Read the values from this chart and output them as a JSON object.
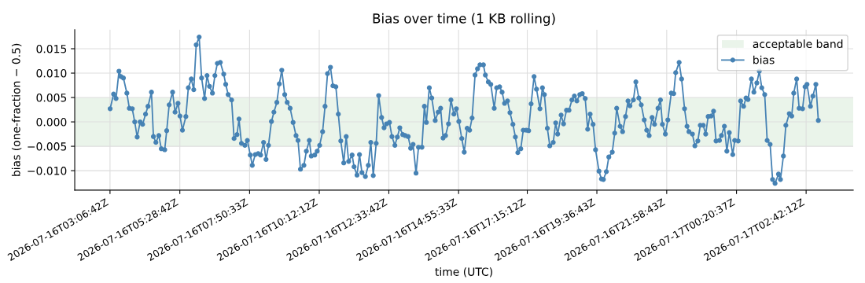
{
  "chart_data": {
    "type": "line",
    "title": "Bias over time (1 KB rolling)",
    "xlabel": "time (UTC)",
    "ylabel": "bias (one-fraction − 0.5)",
    "xlim": [
      "2026-07-16T01:55",
      "2026-07-17T04:18"
    ],
    "ylim": [
      -0.014,
      0.0189
    ],
    "xticks": [
      {
        "value": "2026-07-16T03:06:42",
        "label": "2026-07-16T03:06:42Z"
      },
      {
        "value": "2026-07-16T05:28:42",
        "label": "2026-07-16T05:28:42Z"
      },
      {
        "value": "2026-07-16T07:50:33",
        "label": "2026-07-16T07:50:33Z"
      },
      {
        "value": "2026-07-16T10:12:12",
        "label": "2026-07-16T10:12:12Z"
      },
      {
        "value": "2026-07-16T12:33:42",
        "label": "2026-07-16T12:33:42Z"
      },
      {
        "value": "2026-07-16T14:55:33",
        "label": "2026-07-16T14:55:33Z"
      },
      {
        "value": "2026-07-16T17:15:12",
        "label": "2026-07-16T17:15:12Z"
      },
      {
        "value": "2026-07-16T19:36:43",
        "label": "2026-07-16T19:36:43Z"
      },
      {
        "value": "2026-07-16T21:58:43",
        "label": "2026-07-16T21:58:43Z"
      },
      {
        "value": "2026-07-17T00:20:37",
        "label": "2026-07-17T00:20:37Z"
      },
      {
        "value": "2026-07-17T02:42:12",
        "label": "2026-07-17T02:42:12Z"
      }
    ],
    "yticks": [
      {
        "value": -0.01,
        "label": "−0.010"
      },
      {
        "value": -0.005,
        "label": "−0.005"
      },
      {
        "value": 0,
        "label": "0.000"
      },
      {
        "value": 0.005,
        "label": "0.005"
      },
      {
        "value": 0.01,
        "label": "0.010"
      },
      {
        "value": 0.015,
        "label": "0.015"
      }
    ],
    "grid": true,
    "legend": "top right",
    "marker": "circle",
    "line_style": "solid",
    "bands": [
      {
        "axis": "y",
        "from": -0.005,
        "to": 0.005,
        "label": "acceptable band",
        "color": "#eaf4ea"
      }
    ],
    "series": [
      {
        "name": "bias",
        "color": "#4682b4",
        "x": [
          "2026-07-16T03:07",
          "2026-07-16T03:14",
          "2026-07-16T03:19",
          "2026-07-16T03:25",
          "2026-07-16T03:29",
          "2026-07-16T03:34",
          "2026-07-16T03:41",
          "2026-07-16T03:46",
          "2026-07-16T03:52",
          "2026-07-16T03:57",
          "2026-07-16T04:02",
          "2026-07-16T04:08",
          "2026-07-16T04:13",
          "2026-07-16T04:19",
          "2026-07-16T04:24",
          "2026-07-16T04:31",
          "2026-07-16T04:35",
          "2026-07-16T04:40",
          "2026-07-16T04:46",
          "2026-07-16T04:51",
          "2026-07-16T04:58",
          "2026-07-16T05:02",
          "2026-07-16T05:07",
          "2026-07-16T05:14",
          "2026-07-16T05:19",
          "2026-07-16T05:25",
          "2026-07-16T05:29",
          "2026-07-16T05:34",
          "2026-07-16T05:41",
          "2026-07-16T05:46",
          "2026-07-16T05:52",
          "2026-07-16T05:57",
          "2026-07-16T06:02",
          "2026-07-16T06:08",
          "2026-07-16T06:13",
          "2026-07-16T06:19",
          "2026-07-16T06:24",
          "2026-07-16T06:29",
          "2026-07-16T06:35",
          "2026-07-16T06:40",
          "2026-07-16T06:45",
          "2026-07-16T06:51",
          "2026-07-16T06:58",
          "2026-07-16T07:02",
          "2026-07-16T07:07",
          "2026-07-16T07:14",
          "2026-07-16T07:19",
          "2026-07-16T07:25",
          "2026-07-16T07:29",
          "2026-07-16T07:34",
          "2026-07-16T07:41",
          "2026-07-16T07:46",
          "2026-07-16T07:52",
          "2026-07-16T07:56",
          "2026-07-16T08:02",
          "2026-07-16T08:08",
          "2026-07-16T08:13",
          "2026-07-16T08:19",
          "2026-07-16T08:24",
          "2026-07-16T08:29",
          "2026-07-16T08:35",
          "2026-07-16T08:40",
          "2026-07-16T08:46",
          "2026-07-16T08:51",
          "2026-07-16T08:56",
          "2026-07-16T09:02",
          "2026-07-16T09:07",
          "2026-07-16T09:13",
          "2026-07-16T09:19",
          "2026-07-16T09:25",
          "2026-07-16T09:29",
          "2026-07-16T09:34",
          "2026-07-16T09:41",
          "2026-07-16T09:46",
          "2026-07-16T09:52",
          "2026-07-16T09:56",
          "2026-07-16T10:03",
          "2026-07-16T10:08",
          "2026-07-16T10:13",
          "2026-07-16T10:19",
          "2026-07-16T10:24",
          "2026-07-16T10:29",
          "2026-07-16T10:35",
          "2026-07-16T10:40",
          "2026-07-16T10:46",
          "2026-07-16T10:51",
          "2026-07-16T10:56",
          "2026-07-16T11:02",
          "2026-07-16T11:07",
          "2026-07-16T11:12",
          "2026-07-16T11:19",
          "2026-07-16T11:23",
          "2026-07-16T11:29",
          "2026-07-16T11:34",
          "2026-07-16T11:39",
          "2026-07-16T11:46",
          "2026-07-16T11:52",
          "2026-07-16T11:57",
          "2026-07-16T12:02",
          "2026-07-16T12:08",
          "2026-07-16T12:13",
          "2026-07-16T12:19",
          "2026-07-16T12:24",
          "2026-07-16T12:29",
          "2026-07-16T12:35",
          "2026-07-16T12:40",
          "2026-07-16T12:46",
          "2026-07-16T12:51",
          "2026-07-16T12:56",
          "2026-07-16T13:02",
          "2026-07-16T13:07",
          "2026-07-16T13:13",
          "2026-07-16T13:18",
          "2026-07-16T13:23",
          "2026-07-16T13:29",
          "2026-07-16T13:34",
          "2026-07-16T13:41",
          "2026-07-16T13:46",
          "2026-07-16T13:50",
          "2026-07-16T13:56",
          "2026-07-16T14:01",
          "2026-07-16T14:08",
          "2026-07-16T14:14",
          "2026-07-16T14:19",
          "2026-07-16T14:24",
          "2026-07-16T14:29",
          "2026-07-16T14:35",
          "2026-07-16T14:40",
          "2026-07-16T14:46",
          "2026-07-16T14:51",
          "2026-07-16T14:56",
          "2026-07-16T15:02",
          "2026-07-16T15:07",
          "2026-07-16T15:13",
          "2026-07-16T15:18",
          "2026-07-16T15:23",
          "2026-07-16T15:29",
          "2026-07-16T15:34",
          "2026-07-16T15:39",
          "2026-07-16T15:46",
          "2026-07-16T15:50",
          "2026-07-16T15:56",
          "2026-07-16T16:01",
          "2026-07-16T16:08",
          "2026-07-16T16:13",
          "2026-07-16T16:19",
          "2026-07-16T16:24",
          "2026-07-16T16:29",
          "2026-07-16T16:35",
          "2026-07-16T16:40",
          "2026-07-16T16:46",
          "2026-07-16T16:51",
          "2026-07-16T16:56",
          "2026-07-16T17:02",
          "2026-07-16T17:07",
          "2026-07-16T17:13",
          "2026-07-16T17:18",
          "2026-07-16T17:23",
          "2026-07-16T17:29",
          "2026-07-16T17:34",
          "2026-07-16T17:41",
          "2026-07-16T17:46",
          "2026-07-16T17:50",
          "2026-07-16T17:56",
          "2026-07-16T18:01",
          "2026-07-16T18:08",
          "2026-07-16T18:13",
          "2026-07-16T18:17",
          "2026-07-16T18:24",
          "2026-07-16T18:29",
          "2026-07-16T18:35",
          "2026-07-16T18:40",
          "2026-07-16T18:46",
          "2026-07-16T18:51",
          "2026-07-16T18:56",
          "2026-07-16T19:02",
          "2026-07-16T19:07",
          "2026-07-16T19:13",
          "2026-07-16T19:18",
          "2026-07-16T19:23",
          "2026-07-16T19:29",
          "2026-07-16T19:34",
          "2026-07-16T19:41",
          "2026-07-16T19:46",
          "2026-07-16T19:50",
          "2026-07-16T19:56",
          "2026-07-16T20:01",
          "2026-07-16T20:08",
          "2026-07-16T20:13",
          "2026-07-16T20:17",
          "2026-07-16T20:24",
          "2026-07-16T20:29",
          "2026-07-16T20:35",
          "2026-07-16T20:40",
          "2026-07-16T20:44",
          "2026-07-16T20:51",
          "2026-07-16T20:56",
          "2026-07-16T21:02",
          "2026-07-16T21:07",
          "2026-07-16T21:13",
          "2026-07-16T21:18",
          "2026-07-16T21:23",
          "2026-07-16T21:29",
          "2026-07-16T21:34",
          "2026-07-16T21:41",
          "2026-07-16T21:46",
          "2026-07-16T21:50",
          "2026-07-16T21:56",
          "2026-07-16T22:01",
          "2026-07-16T22:08",
          "2026-07-16T22:13",
          "2026-07-16T22:17",
          "2026-07-16T22:24",
          "2026-07-16T22:29",
          "2026-07-16T22:35",
          "2026-07-16T22:40",
          "2026-07-16T22:44",
          "2026-07-16T22:51",
          "2026-07-16T22:56",
          "2026-07-16T23:02",
          "2026-07-16T23:07",
          "2026-07-16T23:13",
          "2026-07-16T23:18",
          "2026-07-16T23:23",
          "2026-07-16T23:29",
          "2026-07-16T23:34",
          "2026-07-16T23:39",
          "2026-07-16T23:46",
          "2026-07-16T23:50",
          "2026-07-16T23:56",
          "2026-07-17T00:01",
          "2026-07-17T00:06",
          "2026-07-17T00:13",
          "2026-07-17T00:17",
          "2026-07-17T00:24",
          "2026-07-17T00:29",
          "2026-07-17T00:35",
          "2026-07-17T00:40",
          "2026-07-17T00:44",
          "2026-07-17T00:51",
          "2026-07-17T00:56",
          "2026-07-17T01:02",
          "2026-07-17T01:07",
          "2026-07-17T01:12",
          "2026-07-17T01:18",
          "2026-07-17T01:23",
          "2026-07-17T01:29",
          "2026-07-17T01:34",
          "2026-07-17T01:39",
          "2026-07-17T01:46",
          "2026-07-17T01:50",
          "2026-07-17T01:56",
          "2026-07-17T02:01",
          "2026-07-17T02:08",
          "2026-07-17T02:13",
          "2026-07-17T02:17",
          "2026-07-17T02:23",
          "2026-07-17T02:28",
          "2026-07-17T02:35",
          "2026-07-17T02:40",
          "2026-07-17T02:44",
          "2026-07-17T02:51",
          "2026-07-17T02:56",
          "2026-07-17T03:02",
          "2026-07-17T03:07"
        ],
        "values": [
          0.0027,
          0.0057,
          0.0048,
          0.0104,
          0.0093,
          0.009,
          0.0059,
          0.0028,
          0.0027,
          0.0,
          -0.0031,
          0.0,
          -0.0005,
          0.0016,
          0.0032,
          0.0061,
          -0.003,
          -0.0042,
          -0.0028,
          -0.0055,
          -0.0057,
          -0.0018,
          0.0035,
          0.0061,
          0.002,
          0.0038,
          0.0012,
          -0.0017,
          0.0011,
          0.007,
          0.0088,
          0.0066,
          0.0158,
          0.0174,
          0.009,
          0.0048,
          0.0095,
          0.0073,
          0.0059,
          0.0095,
          0.012,
          0.0122,
          0.0098,
          0.0077,
          0.0056,
          0.0045,
          -0.0034,
          -0.0026,
          0.0006,
          -0.0044,
          -0.0048,
          -0.0038,
          -0.0068,
          -0.0089,
          -0.0067,
          -0.0065,
          -0.0068,
          -0.0042,
          -0.0077,
          -0.0048,
          0.0001,
          0.002,
          0.004,
          0.0078,
          0.0106,
          0.0056,
          0.004,
          0.0028,
          -0.0001,
          -0.0028,
          -0.0038,
          -0.0097,
          -0.0089,
          -0.006,
          -0.0038,
          -0.007,
          -0.0068,
          -0.006,
          -0.0048,
          -0.002,
          0.0032,
          0.0099,
          0.0112,
          0.0074,
          0.0072,
          0.0016,
          -0.0039,
          -0.0084,
          -0.003,
          -0.0081,
          -0.0068,
          -0.0092,
          -0.0109,
          -0.0067,
          -0.0104,
          -0.0112,
          -0.0089,
          -0.0042,
          -0.011,
          -0.0044,
          0.0054,
          0.0009,
          -0.0012,
          -0.0004,
          -0.0001,
          -0.003,
          -0.0048,
          -0.0031,
          -0.0012,
          -0.0026,
          -0.0028,
          -0.003,
          -0.0054,
          -0.0046,
          -0.0105,
          -0.0052,
          -0.0052,
          0.0032,
          -0.0001,
          0.007,
          0.0049,
          0.0003,
          0.002,
          0.0028,
          -0.0033,
          -0.0028,
          -0.0004,
          0.0045,
          0.0016,
          0.0027,
          0.0001,
          -0.0034,
          -0.0062,
          -0.0013,
          -0.0017,
          0.0008,
          0.0096,
          0.0109,
          0.0117,
          0.0117,
          0.0096,
          0.0082,
          0.0077,
          0.0028,
          0.007,
          0.0072,
          0.0061,
          0.0038,
          0.0043,
          0.0019,
          -0.0005,
          -0.0031,
          -0.0063,
          -0.0055,
          -0.0017,
          -0.0017,
          -0.0018,
          0.0037,
          0.0093,
          0.0067,
          0.0027,
          0.007,
          0.0056,
          -0.0013,
          -0.0049,
          -0.0042,
          -0.0002,
          -0.0025,
          0.0014,
          -0.0004,
          0.0024,
          0.0024,
          0.0045,
          0.0053,
          0.0043,
          0.0056,
          0.0058,
          0.0048,
          -0.0015,
          0.0016,
          -0.0005,
          -0.0057,
          -0.0101,
          -0.0117,
          -0.0118,
          -0.0102,
          -0.0072,
          -0.0062,
          -0.0023,
          0.0028,
          -0.0009,
          -0.002,
          0.0011,
          0.0043,
          0.0033,
          0.0045,
          0.0082,
          0.0049,
          0.0035,
          0.0004,
          -0.0017,
          -0.0028,
          0.0009,
          -0.0005,
          0.0028,
          0.0045,
          -0.0005,
          -0.0025,
          0.0004,
          0.0059,
          0.0058,
          0.0101,
          0.0122,
          0.0088,
          0.0027,
          -0.0009,
          -0.002,
          -0.0025,
          -0.0049,
          -0.0039,
          -0.0007,
          -0.0007,
          -0.0025,
          0.0011,
          0.0012,
          0.0022,
          -0.0039,
          -0.0038,
          -0.0028,
          -0.0009,
          -0.006,
          -0.0022,
          -0.0067,
          -0.0038,
          -0.0039,
          0.0043,
          0.0032,
          0.0049,
          0.0046,
          0.0088,
          0.0061,
          0.008,
          0.0104,
          0.007,
          0.0056,
          -0.0038,
          -0.0046,
          -0.0118,
          -0.0126,
          -0.0107,
          -0.0118,
          -0.007,
          -0.0007,
          0.0017,
          0.0012,
          0.0059,
          0.0088,
          0.0028,
          0.0027,
          0.0072,
          0.0077,
          0.0032,
          0.0053,
          0.0077,
          0.0003
        ]
      }
    ]
  }
}
